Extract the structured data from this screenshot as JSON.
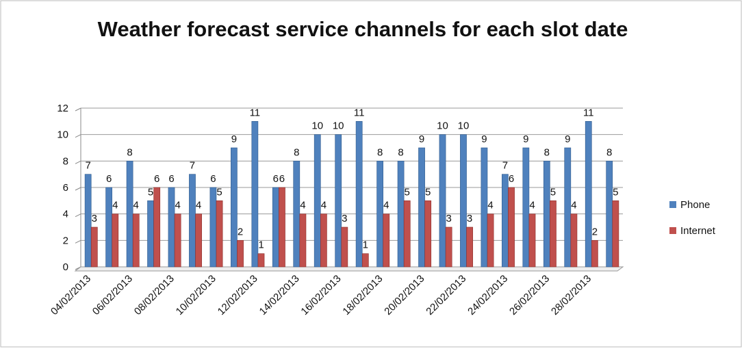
{
  "chart_data": {
    "type": "bar",
    "title": "Weather forecast service channels for each slot date",
    "categories": [
      "04/02/2013",
      null,
      "06/02/2013",
      null,
      "08/02/2013",
      null,
      "10/02/2013",
      null,
      "12/02/2013",
      null,
      "14/02/2013",
      null,
      "16/02/2013",
      null,
      "18/02/2013",
      null,
      "20/02/2013",
      null,
      "22/02/2013",
      null,
      "24/02/2013",
      null,
      "26/02/2013",
      null,
      "28/02/2013",
      null
    ],
    "series": [
      {
        "name": "Phone",
        "color": "#4f81bd",
        "values": [
          7,
          6,
          8,
          5,
          6,
          7,
          6,
          9,
          11,
          6,
          8,
          10,
          10,
          11,
          8,
          8,
          9,
          10,
          10,
          9,
          7,
          9,
          8,
          9,
          11,
          8
        ]
      },
      {
        "name": "Internet",
        "color": "#c0504d",
        "values": [
          3,
          4,
          4,
          6,
          4,
          4,
          5,
          2,
          1,
          6,
          4,
          4,
          3,
          1,
          4,
          5,
          5,
          3,
          3,
          4,
          6,
          4,
          5,
          4,
          2,
          5
        ]
      }
    ],
    "ylim": [
      0,
      12
    ],
    "yticks": [
      0,
      2,
      4,
      6,
      8,
      10,
      12
    ],
    "grid": true,
    "legend": "right"
  }
}
